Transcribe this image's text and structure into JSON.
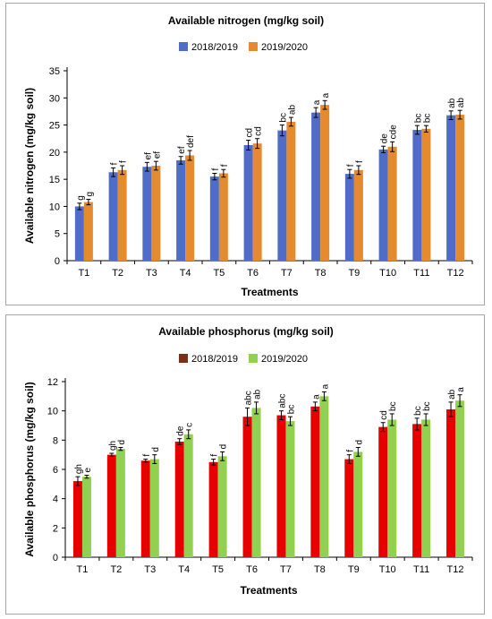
{
  "chart_data": [
    {
      "type": "bar",
      "title": "Available nitrogen (mg/kg soil)",
      "xlabel": "Treatments",
      "ylabel": "Available nitrogen (mg/kg soil)",
      "ylim": [
        0,
        35
      ],
      "yticks": [
        "0",
        "5",
        "10",
        "15",
        "20",
        "25",
        "30",
        "35"
      ],
      "categories": [
        "T1",
        "T2",
        "T3",
        "T4",
        "T5",
        "T6",
        "T7",
        "T8",
        "T9",
        "T10",
        "T11",
        "T12"
      ],
      "legend_position": "top",
      "grid": false,
      "series": [
        {
          "name": "2018/2019",
          "color": "#4f6cc6",
          "values": [
            10.0,
            16.3,
            17.3,
            18.5,
            15.5,
            21.3,
            24.0,
            27.3,
            16.0,
            20.5,
            24.1,
            26.8
          ],
          "errors": [
            0.6,
            0.8,
            0.8,
            0.7,
            0.6,
            0.9,
            1.0,
            0.9,
            0.8,
            0.6,
            0.8,
            0.8
          ],
          "labels": [
            "g",
            "f",
            "ef",
            "ef",
            "f",
            "cd",
            "bc",
            "a",
            "f",
            "de",
            "bc",
            "ab"
          ]
        },
        {
          "name": "2019/2020",
          "color": "#e58a2e",
          "values": [
            10.8,
            16.7,
            17.5,
            19.4,
            16.1,
            21.6,
            25.6,
            28.7,
            16.7,
            21.0,
            24.3,
            26.9
          ],
          "errors": [
            0.5,
            0.8,
            0.8,
            0.9,
            0.7,
            0.9,
            0.8,
            0.8,
            0.8,
            0.9,
            0.6,
            0.8
          ],
          "labels": [
            "g",
            "f",
            "ef",
            "def",
            "f",
            "cd",
            "ab",
            "a",
            "f",
            "cde",
            "bc",
            "ab"
          ]
        }
      ]
    },
    {
      "type": "bar",
      "title": "Available phosphorus (mg/kg soil)",
      "xlabel": "Treatments",
      "ylabel": "Available phosphorus (mg/kg soil)",
      "ylim": [
        0,
        12
      ],
      "yticks": [
        "0",
        "2",
        "4",
        "6",
        "8",
        "10",
        "12"
      ],
      "categories": [
        "T1",
        "T2",
        "T3",
        "T4",
        "T5",
        "T6",
        "T7",
        "T8",
        "T9",
        "T10",
        "T11",
        "T12"
      ],
      "legend_position": "top",
      "grid": false,
      "series": [
        {
          "name": "2018/2019",
          "color": "#e60000",
          "legend_color": "#7a2f16",
          "values": [
            5.2,
            7.0,
            6.6,
            7.9,
            6.5,
            9.6,
            9.7,
            10.3,
            6.7,
            8.9,
            9.1,
            10.1
          ],
          "errors": [
            0.3,
            0.1,
            0.1,
            0.2,
            0.2,
            0.6,
            0.3,
            0.3,
            0.3,
            0.3,
            0.4,
            0.5
          ],
          "labels": [
            "gh",
            "gh",
            "f",
            "de",
            "f",
            "abc",
            "abc",
            "a",
            "f",
            "cd",
            "bc",
            "ab"
          ]
        },
        {
          "name": "2019/2020",
          "color": "#92d050",
          "values": [
            5.5,
            7.4,
            6.7,
            8.4,
            6.9,
            10.2,
            9.3,
            11.0,
            7.2,
            9.4,
            9.4,
            10.7
          ],
          "errors": [
            0.1,
            0.1,
            0.3,
            0.3,
            0.3,
            0.4,
            0.3,
            0.3,
            0.3,
            0.4,
            0.4,
            0.4
          ],
          "labels": [
            "e",
            "d",
            "d",
            "c",
            "d",
            "ab",
            "bc",
            "a",
            "d",
            "bc",
            "bc",
            "a"
          ]
        }
      ]
    }
  ]
}
